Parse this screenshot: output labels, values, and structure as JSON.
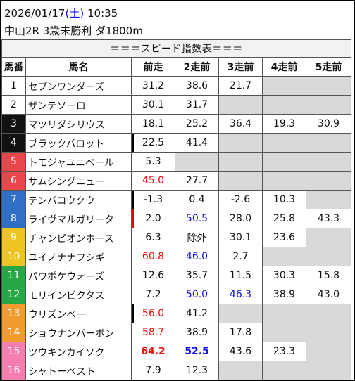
{
  "header": {
    "date": "2026/01/17",
    "dow_open": "(",
    "dow": "土",
    "dow_close": ")",
    "time": "10:35",
    "race": "中山2R 3歳未勝利 ダ1800m"
  },
  "table": {
    "title": "＝＝＝スピード指数表＝＝＝",
    "columns": [
      "馬番",
      "馬名",
      "前走",
      "2走前",
      "3走前",
      "4走前",
      "5走前"
    ],
    "rows": [
      {
        "num": "1",
        "name": "セブンワンダーズ",
        "v": [
          "31.2",
          "38.6",
          "21.7",
          "",
          ""
        ]
      },
      {
        "num": "2",
        "name": "ザンテソーロ",
        "v": [
          "30.1",
          "31.7",
          "",
          "",
          ""
        ]
      },
      {
        "num": "3",
        "name": "マツリダシリウス",
        "v": [
          "18.1",
          "25.2",
          "36.4",
          "19.3",
          "30.9"
        ]
      },
      {
        "num": "4",
        "name": "ブラックパロット",
        "v": [
          "22.5",
          "41.4",
          "",
          "",
          ""
        ]
      },
      {
        "num": "5",
        "name": "トモジャユニベール",
        "v": [
          "5.3",
          "",
          "",
          "",
          ""
        ]
      },
      {
        "num": "6",
        "name": "サムシングニュー",
        "v": [
          "45.0",
          "27.7",
          "",
          "",
          ""
        ]
      },
      {
        "num": "7",
        "name": "テンバコウクウ",
        "v": [
          "-1.3",
          "0.4",
          "-2.6",
          "10.3",
          ""
        ]
      },
      {
        "num": "8",
        "name": "ライヴマルガリータ",
        "v": [
          "2.0",
          "50.5",
          "28.0",
          "25.8",
          "43.3"
        ]
      },
      {
        "num": "9",
        "name": "チャンピオンホース",
        "v": [
          "6.3",
          "除外",
          "30.1",
          "23.6",
          ""
        ]
      },
      {
        "num": "10",
        "name": "ユイノナナフシギ",
        "v": [
          "60.8",
          "46.0",
          "2.7",
          "",
          ""
        ]
      },
      {
        "num": "11",
        "name": "パワポケウォーズ",
        "v": [
          "12.6",
          "35.7",
          "11.5",
          "30.3",
          "15.8"
        ]
      },
      {
        "num": "12",
        "name": "モリインビクタス",
        "v": [
          "7.2",
          "50.0",
          "46.3",
          "38.9",
          "43.0"
        ]
      },
      {
        "num": "13",
        "name": "ウリズンベー",
        "v": [
          "56.0",
          "41.2",
          "",
          "",
          ""
        ]
      },
      {
        "num": "14",
        "name": "ショウナンバーボン",
        "v": [
          "58.7",
          "38.9",
          "17.8",
          "",
          ""
        ]
      },
      {
        "num": "15",
        "name": "ツウキンカイソク",
        "v": [
          "64.2",
          "52.5",
          "43.6",
          "23.3",
          ""
        ]
      },
      {
        "num": "16",
        "name": "シャトーベスト",
        "v": [
          "7.9",
          "12.3",
          "",
          "",
          ""
        ]
      }
    ]
  },
  "frame_colors": [
    {
      "bg": "#ffffff",
      "fg": "#111111"
    },
    {
      "bg": "#ffffff",
      "fg": "#111111"
    },
    {
      "bg": "#111111",
      "fg": "#ffffff"
    },
    {
      "bg": "#111111",
      "fg": "#ffffff"
    },
    {
      "bg": "#e8464b",
      "fg": "#ffffff"
    },
    {
      "bg": "#e8464b",
      "fg": "#ffffff"
    },
    {
      "bg": "#2f6fc6",
      "fg": "#ffffff"
    },
    {
      "bg": "#2f6fc6",
      "fg": "#ffffff"
    },
    {
      "bg": "#eec423",
      "fg": "#ffffff"
    },
    {
      "bg": "#eec423",
      "fg": "#ffffff"
    },
    {
      "bg": "#27a845",
      "fg": "#ffffff"
    },
    {
      "bg": "#27a845",
      "fg": "#ffffff"
    },
    {
      "bg": "#f19a2d",
      "fg": "#ffffff"
    },
    {
      "bg": "#f19a2d",
      "fg": "#ffffff"
    },
    {
      "bg": "#f47fae",
      "fg": "#ffffff"
    },
    {
      "bg": "#f47fae",
      "fg": "#ffffff"
    }
  ],
  "value_styles": {
    "5-0": "red",
    "9-0": "red",
    "12-0": "red",
    "13-0": "red",
    "14-0": "red bold",
    "7-1": "blue",
    "9-1": "blue",
    "11-1": "blue",
    "14-1": "blue bold",
    "11-2": "blue"
  },
  "black_marks": [
    "3-0",
    "6-0",
    "12-0"
  ],
  "red_marks": [
    "7-0"
  ]
}
